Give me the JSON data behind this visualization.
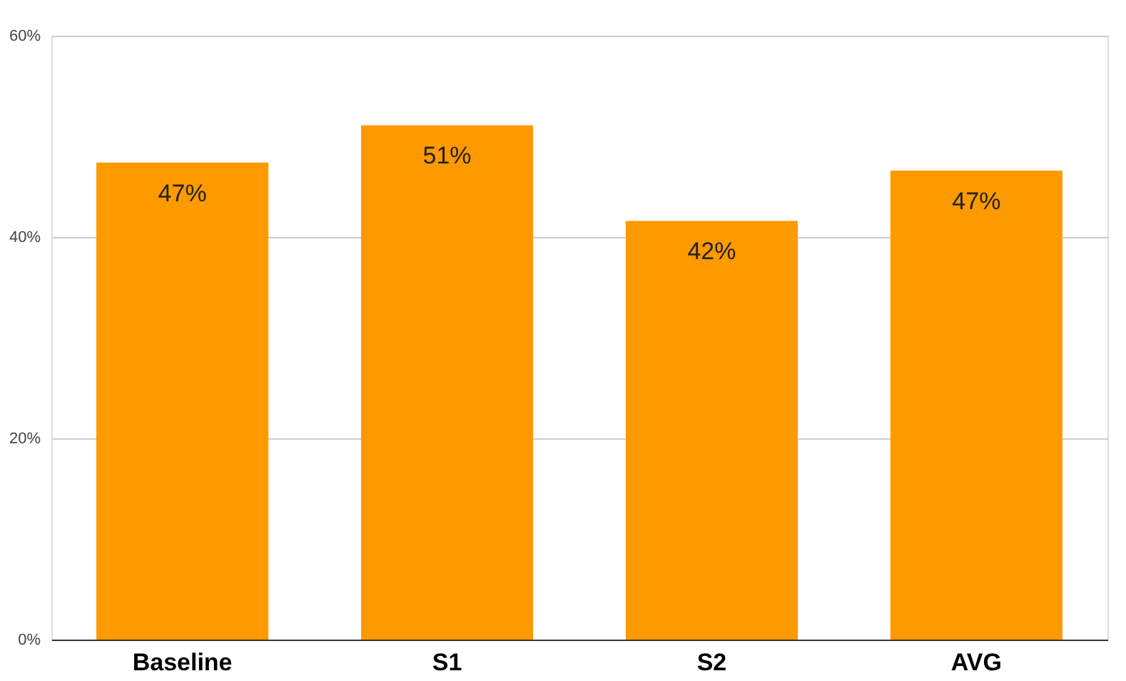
{
  "chart_data": {
    "type": "bar",
    "categories": [
      "Baseline",
      "S1",
      "S2",
      "AVG"
    ],
    "values": [
      47.4,
      51.1,
      41.6,
      46.6
    ],
    "value_labels": [
      "47%",
      "51%",
      "42%",
      "47%"
    ],
    "color": "#ff9900",
    "ylim": [
      0,
      60
    ],
    "yticks": [
      {
        "value": 0,
        "label": "0%"
      },
      {
        "value": 20,
        "label": "20%"
      },
      {
        "value": 40,
        "label": "40%"
      },
      {
        "value": 60,
        "label": "60%"
      }
    ],
    "grid": "y"
  }
}
